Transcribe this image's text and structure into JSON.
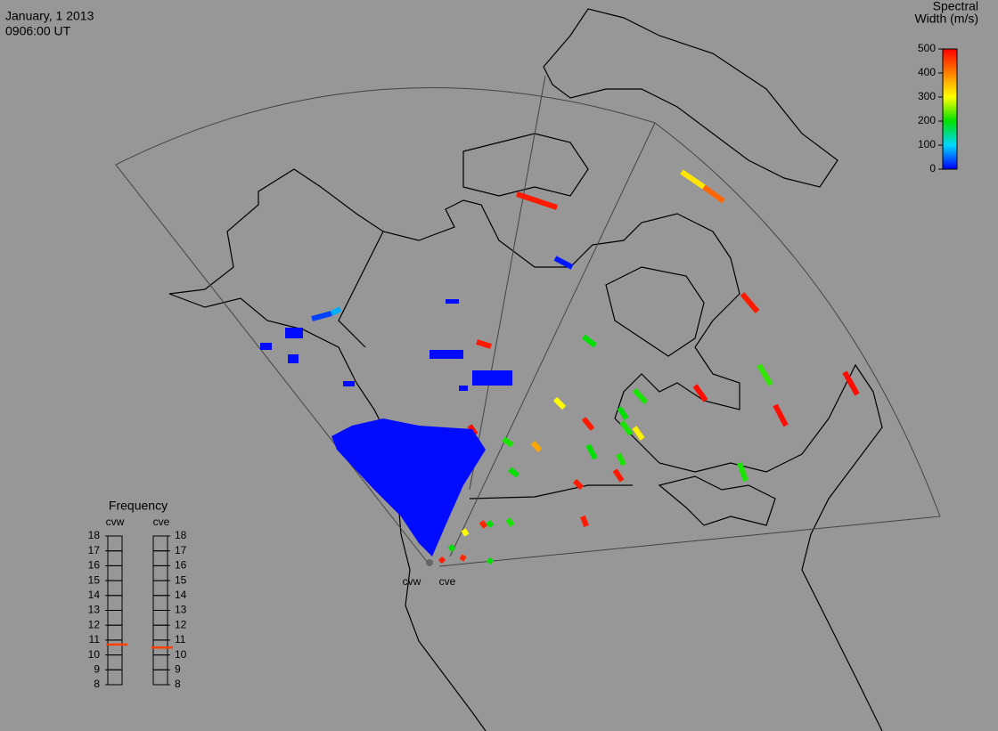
{
  "header": {
    "date": "January, 1 2013",
    "time": "0906:00 UT"
  },
  "colorbar": {
    "title_lines": [
      "Spectral",
      "Width (m/s)"
    ],
    "lim": [
      0,
      500
    ],
    "ticks": [
      0,
      100,
      200,
      300,
      400,
      500
    ]
  },
  "frequency": {
    "title": "Frequency",
    "lim": [
      8,
      18
    ],
    "ticks": [
      8,
      9,
      10,
      11,
      12,
      13,
      14,
      15,
      16,
      17,
      18
    ],
    "radars": [
      {
        "name": "cvw",
        "value": 10.7
      },
      {
        "name": "cve",
        "value": 10.5
      }
    ]
  },
  "echoes": [
    480,
    320,
    420,
    10,
    480,
    200,
    220,
    490,
    490,
    210,
    490,
    300,
    200,
    480,
    310,
    210,
    210,
    370,
    200,
    480,
    210,
    200,
    480,
    210,
    480,
    210,
    470,
    200,
    300,
    200,
    480,
    470,
    200,
    30,
    80,
    480,
    490,
    5,
    5,
    5,
    5,
    5,
    5,
    5,
    5,
    5
  ]
}
